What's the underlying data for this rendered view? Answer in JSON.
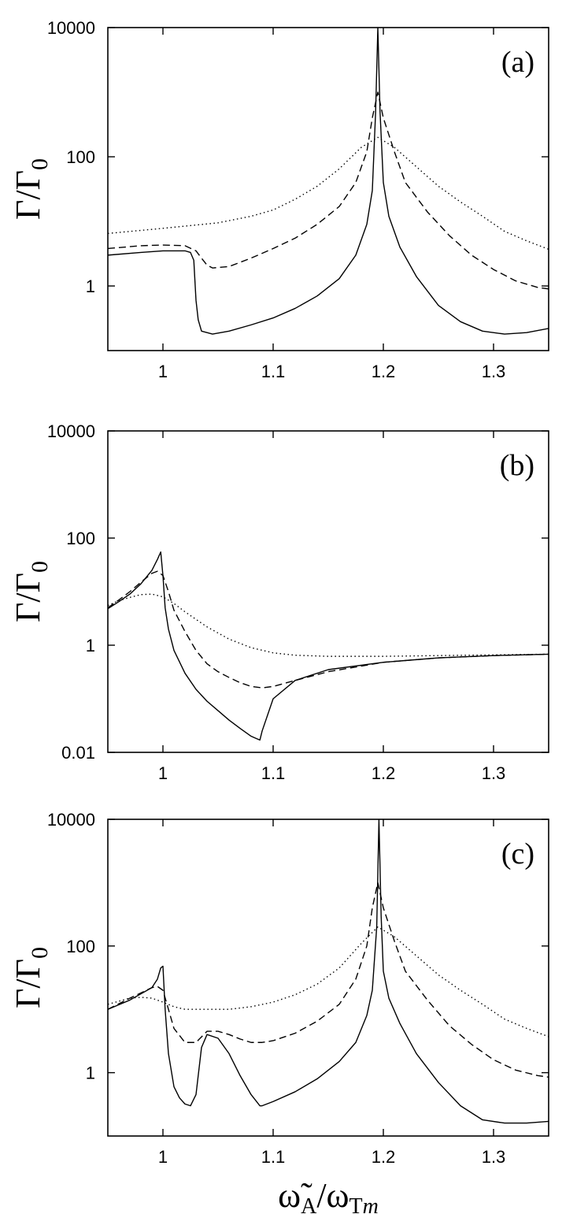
{
  "chart_data": [
    {
      "type": "line",
      "panel_label": "(a)",
      "ylabel": "Γ/Γ",
      "ylabel_sub": "0",
      "xlim": [
        0.95,
        1.35
      ],
      "ylim": [
        0.1,
        10000
      ],
      "yscale": "log",
      "xticks": [
        1,
        1.1,
        1.2,
        1.3
      ],
      "xtick_labels": [
        "1",
        "1.1",
        "1.2",
        "1.3"
      ],
      "yticks": [
        1,
        100,
        10000
      ],
      "ytick_labels": [
        "1",
        "100",
        "10000"
      ],
      "series": [
        {
          "style": "solid",
          "x": [
            0.95,
            0.98,
            1.0,
            1.02,
            1.025,
            1.028,
            1.03,
            1.032,
            1.035,
            1.045,
            1.06,
            1.08,
            1.1,
            1.12,
            1.14,
            1.16,
            1.175,
            1.185,
            1.19,
            1.193,
            1.195,
            1.197,
            1.2,
            1.205,
            1.215,
            1.23,
            1.25,
            1.27,
            1.29,
            1.31,
            1.33,
            1.35
          ],
          "y": [
            3.0,
            3.3,
            3.5,
            3.5,
            3.3,
            2.5,
            0.6,
            0.3,
            0.2,
            0.18,
            0.2,
            0.25,
            0.32,
            0.45,
            0.7,
            1.3,
            3.0,
            9.0,
            30,
            500,
            10000,
            500,
            40,
            12,
            4,
            1.4,
            0.5,
            0.28,
            0.2,
            0.18,
            0.19,
            0.22
          ]
        },
        {
          "style": "dashed",
          "x": [
            0.95,
            0.98,
            1.0,
            1.02,
            1.03,
            1.035,
            1.04,
            1.045,
            1.06,
            1.08,
            1.1,
            1.12,
            1.14,
            1.16,
            1.175,
            1.185,
            1.19,
            1.195,
            1.2,
            1.21,
            1.22,
            1.24,
            1.26,
            1.28,
            1.3,
            1.32,
            1.34,
            1.35
          ],
          "y": [
            3.8,
            4.2,
            4.3,
            4.2,
            3.5,
            2.7,
            2.1,
            1.9,
            2.0,
            2.7,
            3.8,
            5.5,
            9.0,
            17,
            40,
            120,
            400,
            1000,
            400,
            120,
            40,
            14,
            6.0,
            3.0,
            1.8,
            1.2,
            0.95,
            0.9
          ]
        },
        {
          "style": "dotted",
          "x": [
            0.95,
            1.0,
            1.05,
            1.08,
            1.1,
            1.12,
            1.14,
            1.16,
            1.18,
            1.195,
            1.21,
            1.23,
            1.25,
            1.27,
            1.29,
            1.31,
            1.33,
            1.35
          ],
          "y": [
            6.5,
            7.8,
            9.5,
            12,
            15,
            22,
            35,
            65,
            140,
            200,
            140,
            70,
            35,
            20,
            12,
            7,
            5,
            3.7
          ]
        }
      ]
    },
    {
      "type": "line",
      "panel_label": "(b)",
      "ylabel": "Γ/Γ",
      "ylabel_sub": "0",
      "xlim": [
        0.95,
        1.35
      ],
      "ylim": [
        0.01,
        10000
      ],
      "yscale": "log",
      "xticks": [
        1,
        1.1,
        1.2,
        1.3
      ],
      "xtick_labels": [
        "1",
        "1.1",
        "1.2",
        "1.3"
      ],
      "yticks": [
        0.01,
        1,
        100,
        10000
      ],
      "ytick_labels": [
        "0.01",
        "1",
        "100",
        "10000"
      ],
      "series": [
        {
          "style": "solid",
          "x": [
            0.95,
            0.96,
            0.97,
            0.98,
            0.99,
            0.995,
            0.998,
            1.0,
            1.002,
            1.005,
            1.01,
            1.02,
            1.03,
            1.04,
            1.05,
            1.06,
            1.07,
            1.08,
            1.085,
            1.088,
            1.09,
            1.095,
            1.1,
            1.12,
            1.15,
            1.2,
            1.25,
            1.3,
            1.35
          ],
          "y": [
            4.8,
            6.5,
            9.0,
            14,
            25,
            40,
            55,
            20,
            5.0,
            2.0,
            0.8,
            0.3,
            0.15,
            0.09,
            0.06,
            0.04,
            0.028,
            0.02,
            0.018,
            0.017,
            0.025,
            0.05,
            0.1,
            0.22,
            0.35,
            0.48,
            0.58,
            0.64,
            0.68
          ]
        },
        {
          "style": "dashed",
          "x": [
            0.95,
            0.96,
            0.97,
            0.98,
            0.99,
            0.995,
            1.0,
            1.005,
            1.01,
            1.02,
            1.03,
            1.04,
            1.05,
            1.06,
            1.07,
            1.08,
            1.09,
            1.1,
            1.12,
            1.15,
            1.2,
            1.25,
            1.3,
            1.35
          ],
          "y": [
            5.0,
            7.0,
            10,
            15,
            22,
            24,
            20,
            10,
            4.5,
            1.8,
            0.8,
            0.45,
            0.32,
            0.25,
            0.2,
            0.17,
            0.16,
            0.17,
            0.22,
            0.32,
            0.48,
            0.58,
            0.64,
            0.68
          ]
        },
        {
          "style": "dotted",
          "x": [
            0.95,
            0.96,
            0.97,
            0.98,
            0.99,
            1.0,
            1.01,
            1.02,
            1.04,
            1.06,
            1.08,
            1.1,
            1.12,
            1.15,
            1.2,
            1.25,
            1.3,
            1.35
          ],
          "y": [
            5.5,
            6.8,
            7.8,
            8.8,
            9.0,
            8.0,
            6.0,
            4.2,
            2.2,
            1.3,
            0.9,
            0.72,
            0.65,
            0.62,
            0.62,
            0.64,
            0.66,
            0.68
          ]
        }
      ]
    },
    {
      "type": "line",
      "panel_label": "(c)",
      "ylabel": "Γ/Γ",
      "ylabel_sub": "0",
      "xlabel": "ω̃",
      "xlabel_sub": "A",
      "xlabel_mid": "/ω",
      "xlabel_sub2": "T",
      "xlabel_sub2_italic": "m",
      "xlim": [
        0.95,
        1.35
      ],
      "ylim": [
        0.1,
        10000
      ],
      "yscale": "log",
      "xticks": [
        1,
        1.1,
        1.2,
        1.3
      ],
      "xtick_labels": [
        "1",
        "1.1",
        "1.2",
        "1.3"
      ],
      "yticks": [
        1,
        100,
        10000
      ],
      "ytick_labels": [
        "1",
        "100",
        "10000"
      ],
      "series": [
        {
          "style": "solid",
          "x": [
            0.95,
            0.97,
            0.99,
            0.995,
            0.998,
            1.0,
            1.002,
            1.005,
            1.01,
            1.015,
            1.02,
            1.025,
            1.03,
            1.035,
            1.04,
            1.05,
            1.06,
            1.07,
            1.08,
            1.088,
            1.09,
            1.1,
            1.12,
            1.14,
            1.16,
            1.175,
            1.185,
            1.19,
            1.194,
            1.196,
            1.198,
            1.2,
            1.205,
            1.215,
            1.23,
            1.25,
            1.27,
            1.29,
            1.31,
            1.33,
            1.35
          ],
          "y": [
            10,
            14,
            22,
            30,
            45,
            48,
            10,
            2.0,
            0.6,
            0.4,
            0.32,
            0.3,
            0.45,
            2.5,
            4.0,
            3.5,
            2.0,
            0.9,
            0.45,
            0.3,
            0.3,
            0.35,
            0.5,
            0.8,
            1.5,
            3.0,
            8.0,
            20,
            200,
            10000,
            300,
            40,
            15,
            6.0,
            2.0,
            0.7,
            0.3,
            0.18,
            0.16,
            0.16,
            0.17
          ]
        },
        {
          "style": "dashed",
          "x": [
            0.95,
            0.97,
            0.99,
            0.995,
            1.0,
            1.005,
            1.01,
            1.02,
            1.03,
            1.04,
            1.05,
            1.06,
            1.07,
            1.08,
            1.09,
            1.1,
            1.12,
            1.14,
            1.16,
            1.175,
            1.185,
            1.19,
            1.195,
            1.2,
            1.21,
            1.22,
            1.24,
            1.26,
            1.28,
            1.3,
            1.32,
            1.34,
            1.35
          ],
          "y": [
            10,
            15,
            22,
            23,
            20,
            10,
            5.0,
            3.0,
            3.0,
            4.5,
            4.5,
            4.0,
            3.4,
            3.0,
            3.0,
            3.2,
            4.2,
            6.5,
            12,
            30,
            100,
            400,
            1000,
            400,
            120,
            40,
            14,
            5.5,
            2.8,
            1.6,
            1.1,
            0.9,
            0.85
          ]
        },
        {
          "style": "dotted",
          "x": [
            0.95,
            0.97,
            0.98,
            0.99,
            1.0,
            1.01,
            1.02,
            1.04,
            1.06,
            1.08,
            1.1,
            1.12,
            1.14,
            1.16,
            1.18,
            1.195,
            1.21,
            1.23,
            1.25,
            1.27,
            1.29,
            1.31,
            1.33,
            1.35
          ],
          "y": [
            12,
            15,
            15.5,
            15,
            13,
            11,
            10,
            10,
            10,
            11,
            13,
            17,
            25,
            45,
            110,
            200,
            140,
            70,
            35,
            20,
            12,
            7,
            5,
            3.7
          ]
        }
      ]
    }
  ]
}
